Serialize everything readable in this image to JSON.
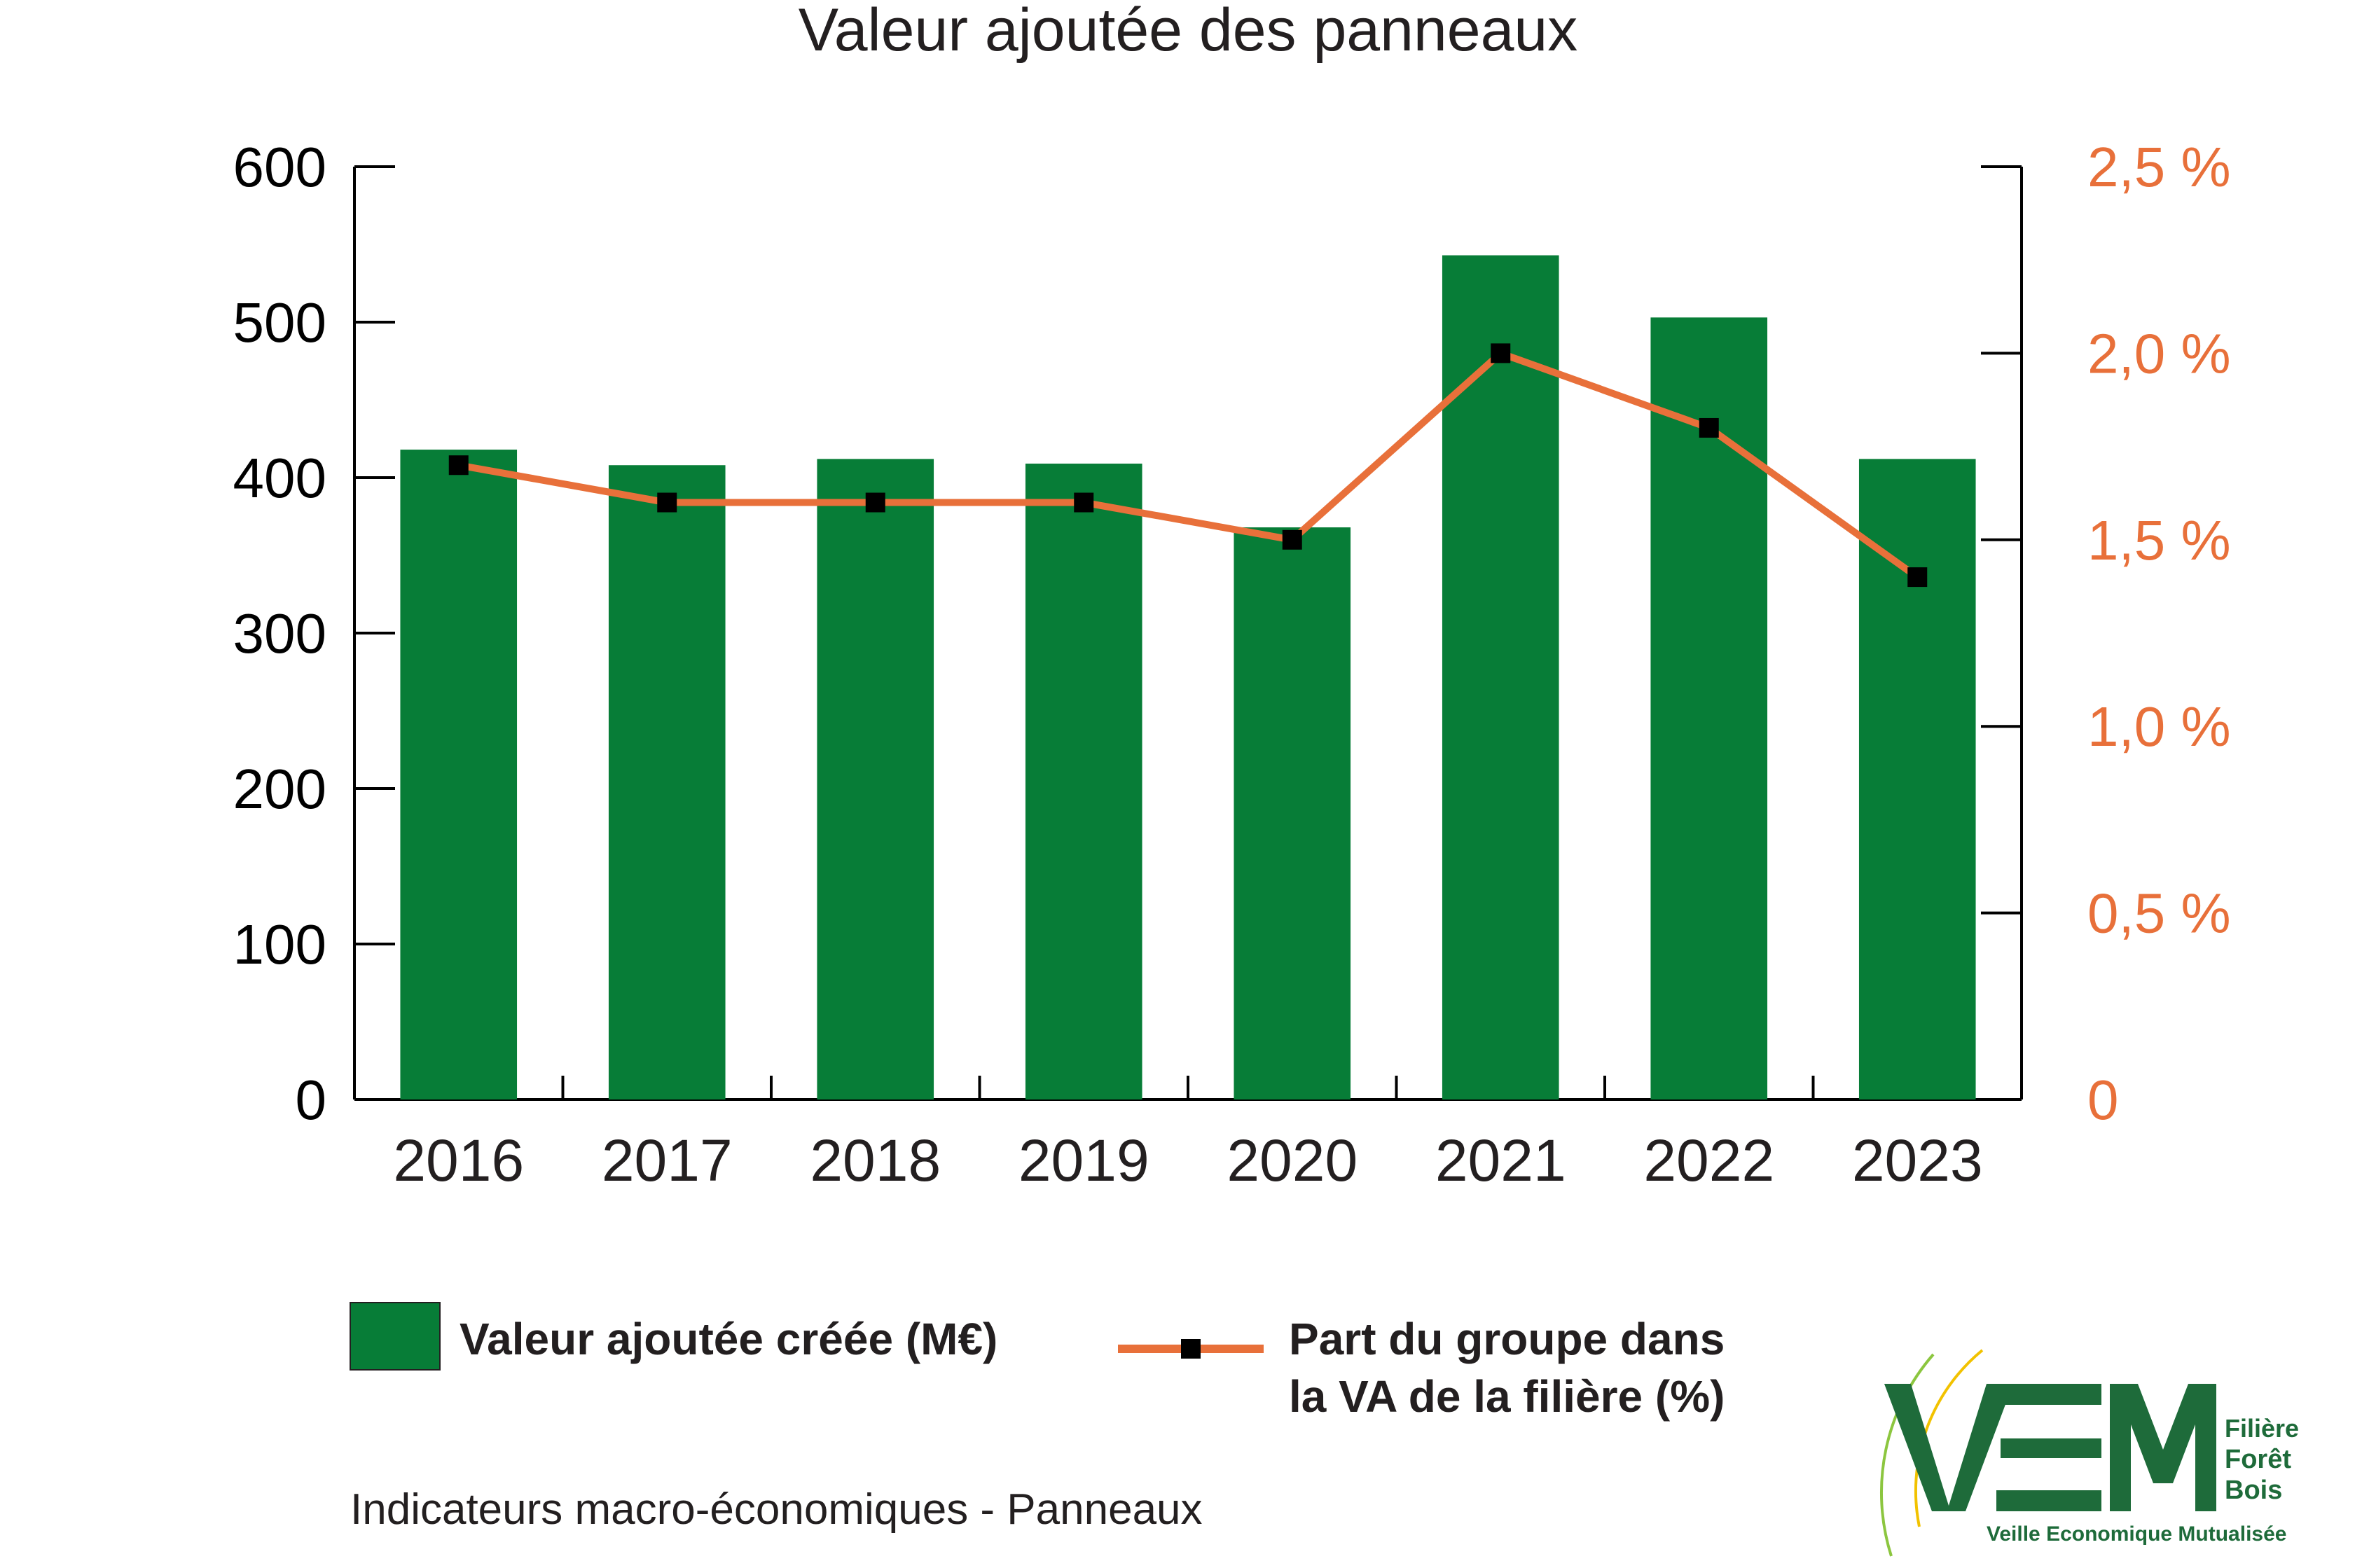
{
  "chart_data": {
    "type": "bar",
    "title": "Valeur ajoutée des panneaux",
    "categories": [
      "2016",
      "2017",
      "2018",
      "2019",
      "2020",
      "2021",
      "2022",
      "2023"
    ],
    "series": [
      {
        "name": "Valeur ajoutée créée (M€)",
        "type": "bar",
        "axis": "left",
        "color": "#077d37",
        "values": [
          418,
          408,
          412,
          409,
          368,
          543,
          503,
          412
        ]
      },
      {
        "name": "Part du groupe dans la VA de la filière (%)",
        "legend_lines": [
          "Part du groupe dans",
          "la VA de la filière (%)"
        ],
        "type": "line",
        "axis": "right",
        "color": "#e8703a",
        "marker_color": "#000000",
        "values": [
          1.7,
          1.6,
          1.6,
          1.6,
          1.5,
          2.0,
          1.8,
          1.4
        ]
      }
    ],
    "y_left": {
      "ylim": [
        0,
        600
      ],
      "ticks": [
        0,
        100,
        200,
        300,
        400,
        500,
        600
      ],
      "tick_labels": [
        "0",
        "100",
        "200",
        "300",
        "400",
        "500",
        "600"
      ]
    },
    "y_right": {
      "ylim": [
        0,
        2.5
      ],
      "ticks": [
        0,
        0.5,
        1.0,
        1.5,
        2.0,
        2.5
      ],
      "tick_labels": [
        "0",
        "0,5 %",
        "1,0 %",
        "1,5 %",
        "2,0 %",
        "2,5 %"
      ],
      "color": "#e8703a"
    },
    "grid": false,
    "legend_position": "bottom"
  },
  "footer": "Indicateurs macro-économiques - Panneaux",
  "logo": {
    "text_lines": [
      "Filière",
      "Forêt",
      "Bois"
    ],
    "tagline": "Veille Economique Mutualisée",
    "color": "#1e6b3a",
    "accent_color": "#f2c200"
  }
}
